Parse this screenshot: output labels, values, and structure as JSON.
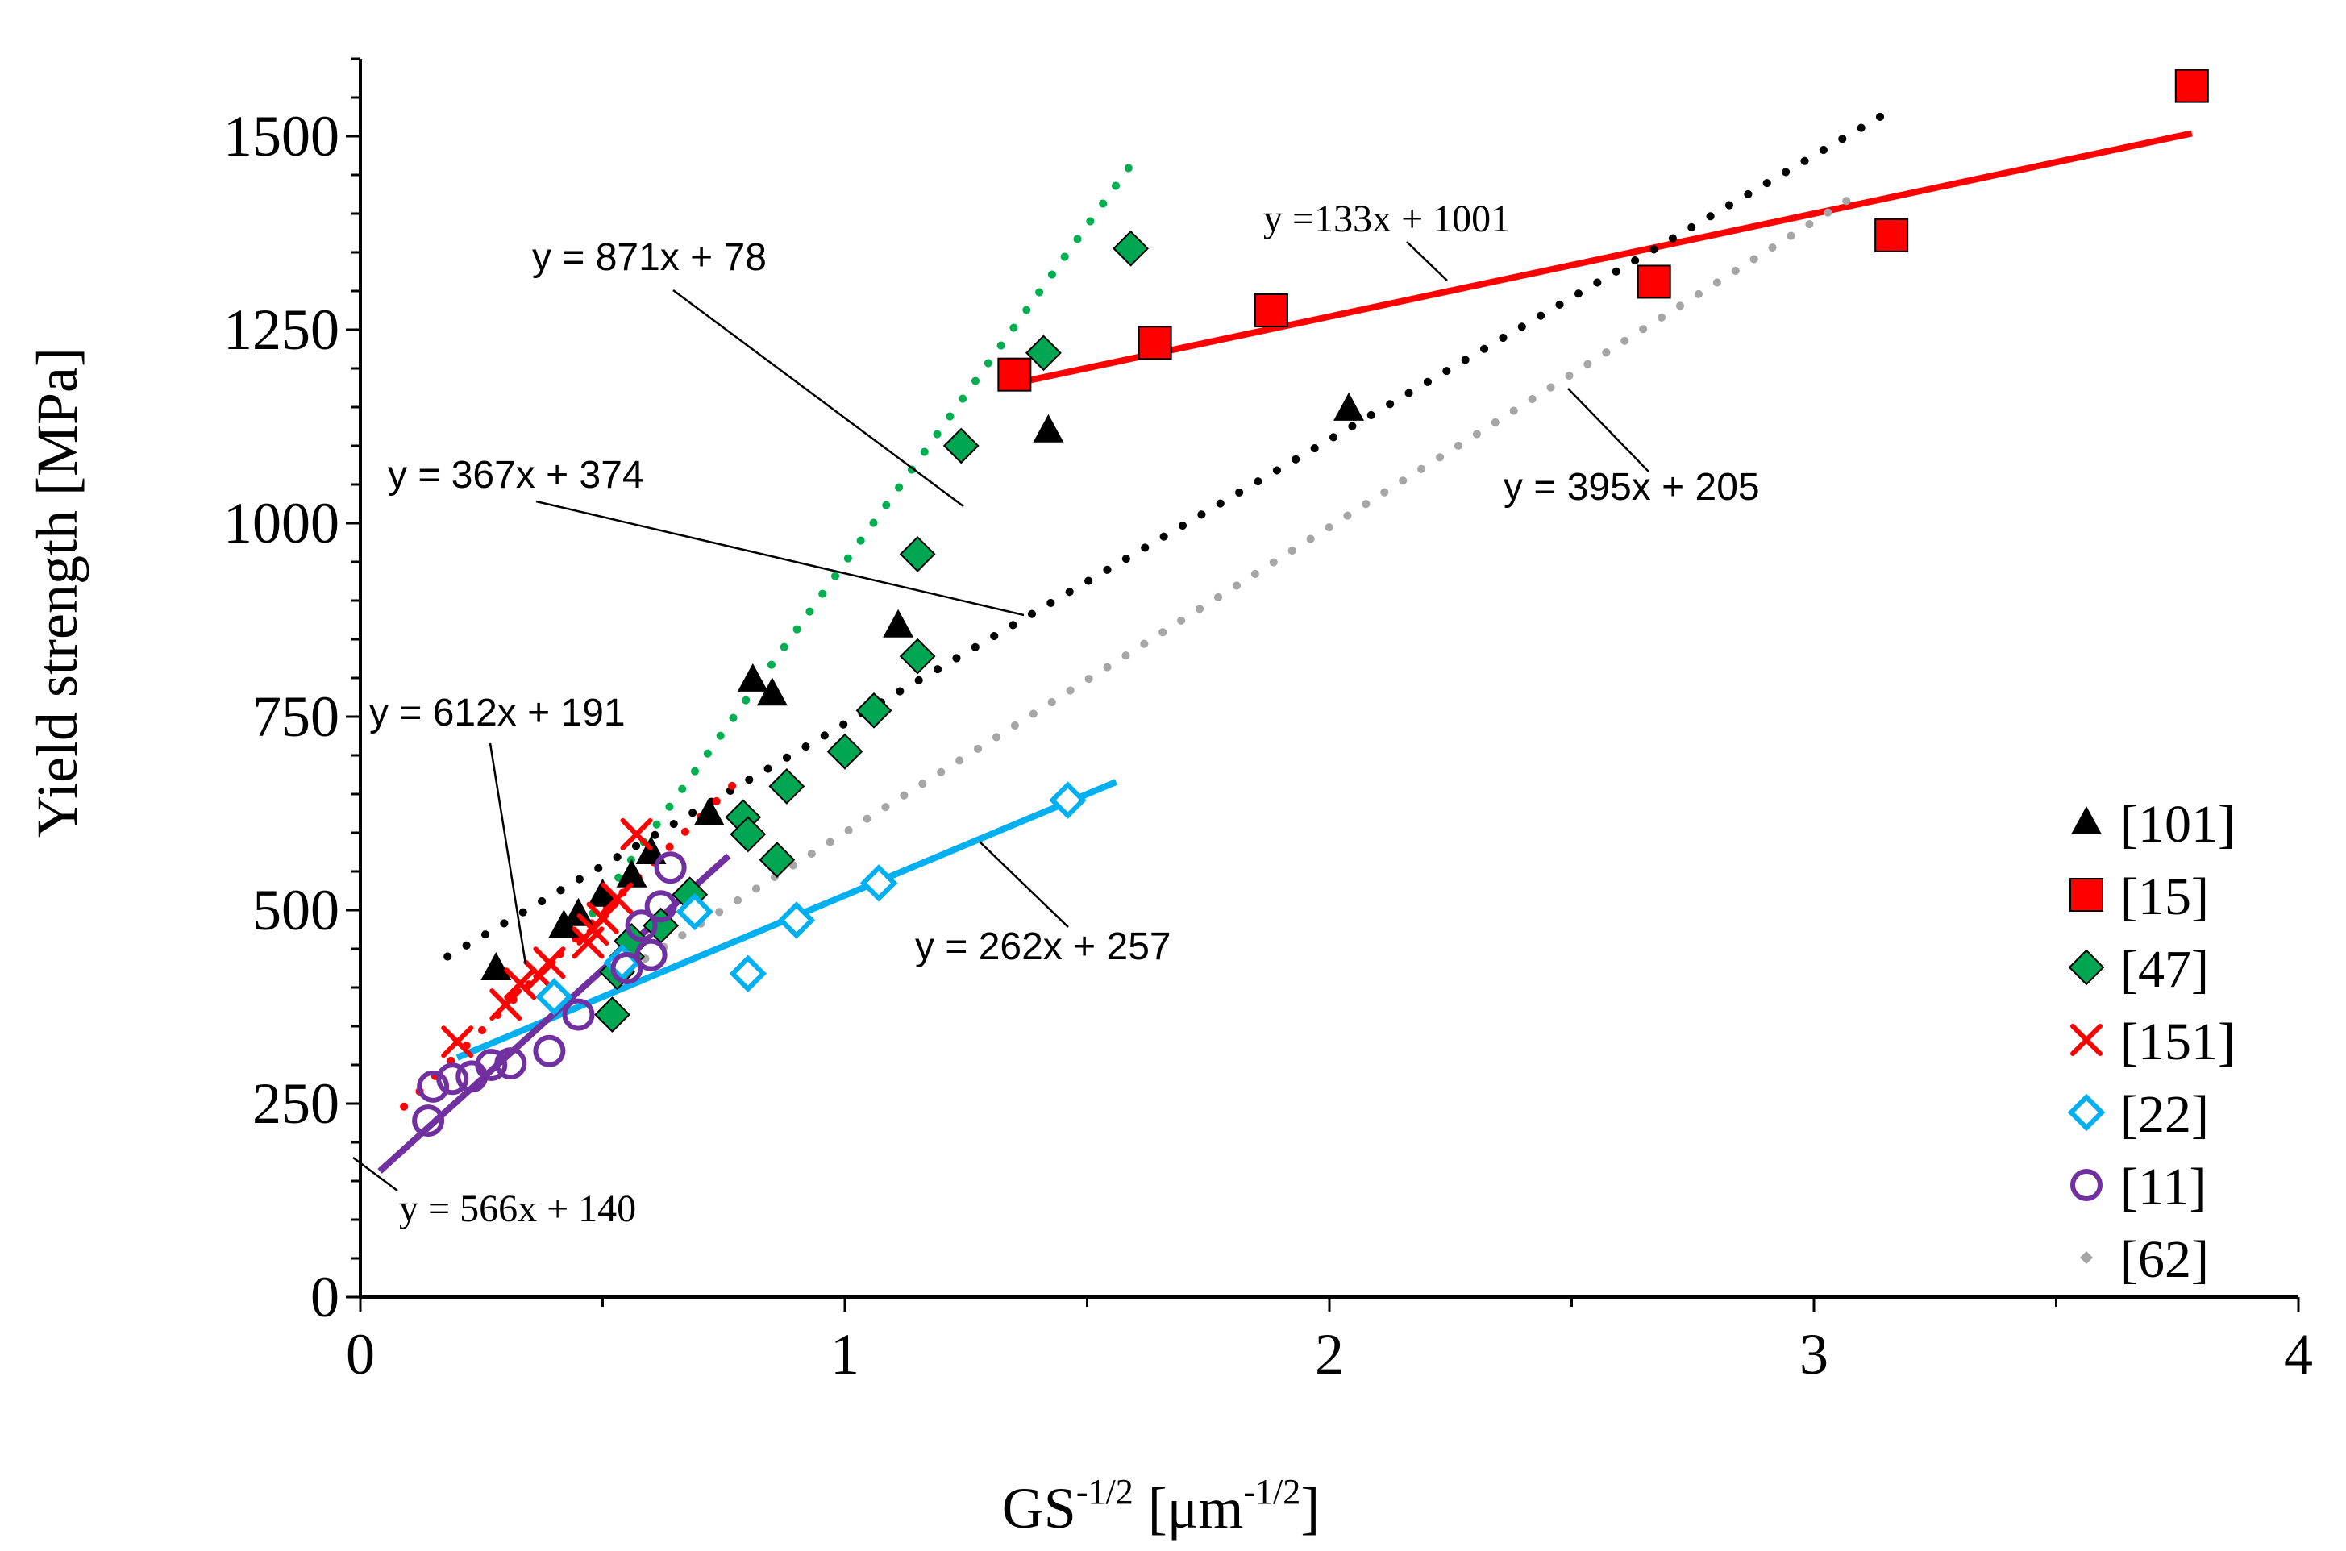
{
  "chart_data": {
    "type": "scatter",
    "xlabel": {
      "base": "GS",
      "base_sup": "-1/2",
      "unit_open": " [",
      "unit": "μm",
      "unit_sup": "-1/2",
      "unit_close": "]"
    },
    "ylabel": "Yield strength [MPa]",
    "xlim": [
      0,
      4
    ],
    "ylim": [
      0,
      1600
    ],
    "x_ticks": [
      0,
      1,
      2,
      3,
      4
    ],
    "y_ticks": [
      0,
      250,
      500,
      750,
      1000,
      1250,
      1500
    ],
    "grid": false,
    "legend_position": "bottom-right",
    "series": [
      {
        "name": "[101]",
        "marker": "triangle",
        "color": "#000000",
        "points": [
          [
            0.28,
            425
          ],
          [
            0.42,
            480
          ],
          [
            0.45,
            495
          ],
          [
            0.5,
            520
          ],
          [
            0.56,
            545
          ],
          [
            0.6,
            575
          ],
          [
            0.72,
            625
          ],
          [
            0.81,
            798
          ],
          [
            0.85,
            780
          ],
          [
            1.11,
            868
          ],
          [
            1.42,
            1120
          ],
          [
            2.04,
            1148
          ]
        ]
      },
      {
        "name": "[15]",
        "marker": "square",
        "color": "#ff0000",
        "points": [
          [
            1.35,
            1192
          ],
          [
            1.64,
            1233
          ],
          [
            1.88,
            1275
          ],
          [
            2.67,
            1312
          ],
          [
            3.16,
            1372
          ],
          [
            3.78,
            1565
          ]
        ]
      },
      {
        "name": "[47]",
        "marker": "diamond",
        "color": "#00a651",
        "points": [
          [
            0.52,
            365
          ],
          [
            0.53,
            420
          ],
          [
            0.55,
            440
          ],
          [
            0.56,
            460
          ],
          [
            0.62,
            480
          ],
          [
            0.68,
            520
          ],
          [
            0.79,
            620
          ],
          [
            0.8,
            598
          ],
          [
            0.86,
            565
          ],
          [
            0.88,
            660
          ],
          [
            1.0,
            705
          ],
          [
            1.06,
            758
          ],
          [
            1.15,
            828
          ],
          [
            1.15,
            960
          ],
          [
            1.24,
            1100
          ],
          [
            1.41,
            1220
          ],
          [
            1.59,
            1355
          ]
        ]
      },
      {
        "name": "[151]",
        "marker": "x",
        "color": "#ff0000",
        "points": [
          [
            0.2,
            330
          ],
          [
            0.3,
            378
          ],
          [
            0.33,
            405
          ],
          [
            0.37,
            415
          ],
          [
            0.39,
            432
          ],
          [
            0.47,
            458
          ],
          [
            0.48,
            475
          ],
          [
            0.5,
            490
          ],
          [
            0.53,
            515
          ],
          [
            0.57,
            598
          ]
        ]
      },
      {
        "name": "[22]",
        "marker": "diamond-open",
        "color": "#00b0f0",
        "points": [
          [
            0.4,
            388
          ],
          [
            0.54,
            432
          ],
          [
            0.69,
            498
          ],
          [
            0.8,
            418
          ],
          [
            0.9,
            487
          ],
          [
            1.07,
            535
          ],
          [
            1.46,
            642
          ]
        ]
      },
      {
        "name": "[11]",
        "marker": "circle-open",
        "color": "#7030a0",
        "points": [
          [
            0.14,
            228
          ],
          [
            0.15,
            272
          ],
          [
            0.19,
            282
          ],
          [
            0.23,
            285
          ],
          [
            0.27,
            300
          ],
          [
            0.31,
            302
          ],
          [
            0.39,
            318
          ],
          [
            0.45,
            365
          ],
          [
            0.55,
            425
          ],
          [
            0.58,
            480
          ],
          [
            0.6,
            442
          ],
          [
            0.62,
            505
          ],
          [
            0.64,
            555
          ]
        ]
      },
      {
        "name": "[62]",
        "marker": "dot",
        "color": "#a6a6a6",
        "points": []
      }
    ],
    "fits": [
      {
        "label": "y = 871x + 78",
        "slope": 871,
        "intercept": 78,
        "x_range": [
          0.48,
          1.59
        ],
        "color": "#00b050",
        "style": "dotted"
      },
      {
        "label": "y =133x + 1001",
        "slope": 133,
        "intercept": 1001,
        "x_range": [
          1.38,
          3.78
        ],
        "color": "#ff0000",
        "style": "solid"
      },
      {
        "label": "y = 367x + 374",
        "slope": 367,
        "intercept": 374,
        "x_range": [
          0.18,
          3.16
        ],
        "color": "#000000",
        "style": "dotted"
      },
      {
        "label": "y = 395x + 205",
        "slope": 395,
        "intercept": 205,
        "x_range": [
          0.55,
          3.1
        ],
        "color": "#a6a6a6",
        "style": "dotted"
      },
      {
        "label": "y = 612x + 191",
        "slope": 612,
        "intercept": 191,
        "x_range": [
          0.09,
          0.77
        ],
        "color": "#ff0000",
        "style": "dotted"
      },
      {
        "label": "y = 262x + 257",
        "slope": 262,
        "intercept": 257,
        "x_range": [
          0.2,
          1.56
        ],
        "color": "#00b0f0",
        "style": "solid"
      },
      {
        "label": "y = 566x + 140",
        "slope": 566,
        "intercept": 140,
        "x_range": [
          0.04,
          0.76
        ],
        "color": "#7030a0",
        "style": "solid"
      }
    ]
  }
}
